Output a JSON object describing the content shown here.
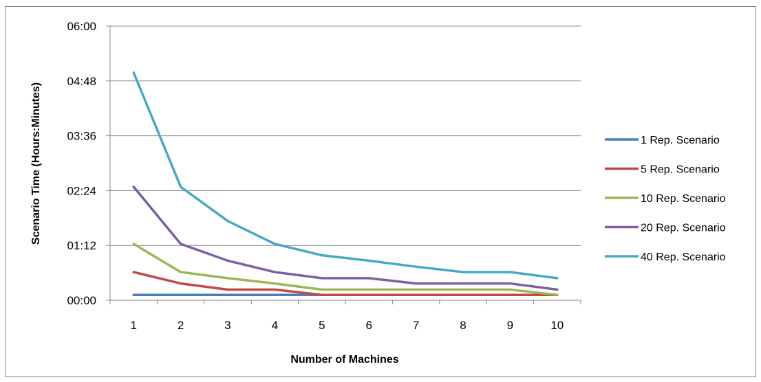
{
  "chart_data": {
    "type": "line",
    "title": "",
    "xlabel": "Number of Machines",
    "ylabel": "Scenario Time (Hours:Minutes)",
    "categories": [
      "1",
      "2",
      "3",
      "4",
      "5",
      "6",
      "7",
      "8",
      "9",
      "10"
    ],
    "y_ticks": [
      "00:00",
      "01:12",
      "02:24",
      "03:36",
      "04:48",
      "06:00"
    ],
    "ylim_minutes": [
      0,
      360
    ],
    "y_unit": "minutes",
    "grid": "horizontal",
    "legend_position": "right",
    "series": [
      {
        "name": "1 Rep. Scenario",
        "color": "#4a7ebb",
        "values": [
          7,
          7,
          7,
          7,
          7,
          7,
          7,
          7,
          7,
          7
        ]
      },
      {
        "name": "5 Rep. Scenario",
        "color": "#be4b48",
        "values": [
          37,
          22,
          14,
          14,
          7,
          7,
          7,
          7,
          7,
          7
        ]
      },
      {
        "name": "10 Rep. Scenario",
        "color": "#98b954",
        "values": [
          74,
          37,
          29,
          22,
          14,
          14,
          14,
          14,
          14,
          7
        ]
      },
      {
        "name": "20 Rep. Scenario",
        "color": "#7d60a0",
        "values": [
          149,
          74,
          52,
          37,
          29,
          29,
          22,
          22,
          22,
          14
        ]
      },
      {
        "name": "40 Rep. Scenario",
        "color": "#46aac5",
        "values": [
          299,
          149,
          104,
          74,
          59,
          52,
          44,
          37,
          37,
          29
        ]
      }
    ]
  }
}
